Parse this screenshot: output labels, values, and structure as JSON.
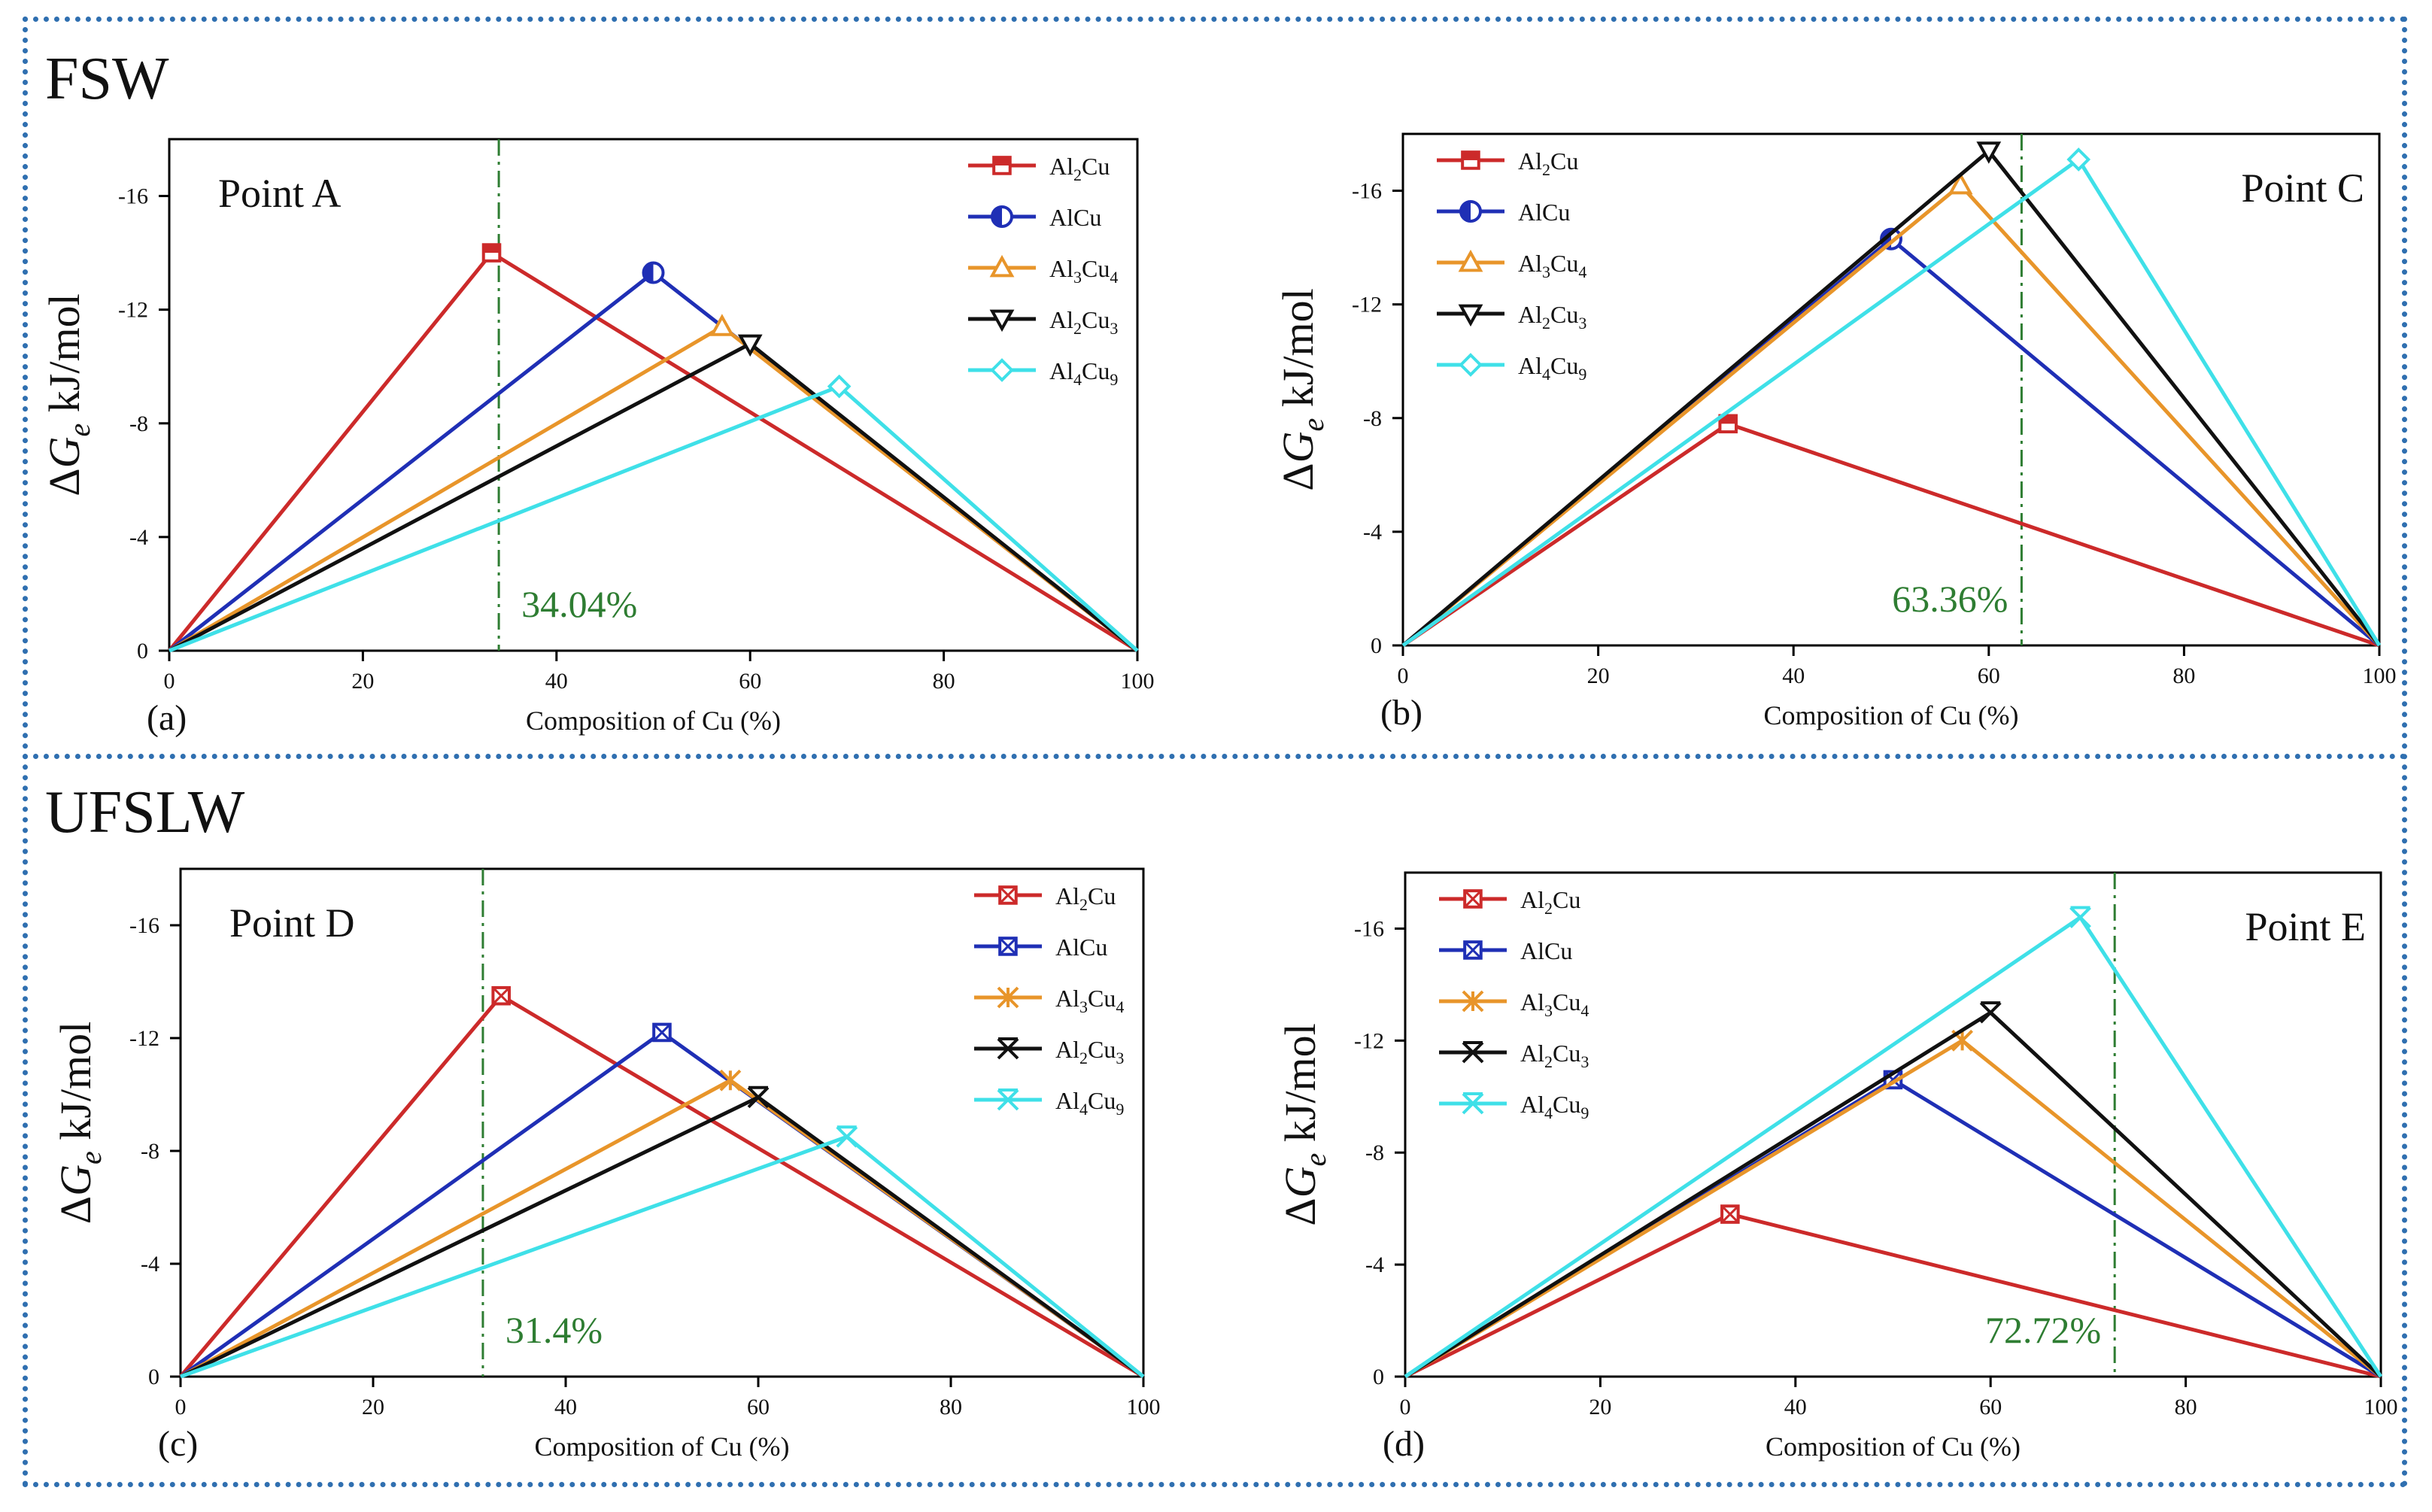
{
  "sections": [
    {
      "title": "FSW"
    },
    {
      "title": "UFSLW"
    }
  ],
  "colors": {
    "Al2Cu": "#cc2a2a",
    "AlCu": "#1f2fb5",
    "Al3Cu4": "#e8952a",
    "Al2Cu3": "#111111",
    "Al4Cu9": "#3fe0e8",
    "marker_line": "#2e7d32",
    "frame": "#2f6fb0"
  },
  "chart_data": [
    {
      "type": "line",
      "panel_label": "(a)",
      "point_label": "Point A",
      "annotation": "34.04%",
      "vline_x": 34.04,
      "xlabel": "Composition of Cu (%)",
      "ylabel_parts": [
        "ΔG",
        "e",
        "kJ/mol"
      ],
      "xlim": [
        0,
        100
      ],
      "ylim": [
        0,
        -18
      ],
      "xticks": [
        0,
        20,
        40,
        60,
        80,
        100
      ],
      "yticks": [
        0,
        -4,
        -8,
        -12,
        -16
      ],
      "legend_position": "top-right",
      "series": [
        {
          "name": "Al2Cu",
          "label_parts": [
            "Al",
            "2",
            "Cu",
            ""
          ],
          "marker": "square-half",
          "x": [
            0,
            33.3,
            100
          ],
          "y": [
            0,
            -14.0,
            0
          ]
        },
        {
          "name": "AlCu",
          "label_parts": [
            "AlCu",
            "",
            "",
            ""
          ],
          "marker": "circle-half",
          "x": [
            0,
            50,
            100
          ],
          "y": [
            0,
            -13.3,
            0
          ]
        },
        {
          "name": "Al3Cu4",
          "label_parts": [
            "Al",
            "3",
            "Cu",
            "4"
          ],
          "marker": "tri-up",
          "x": [
            0,
            57.1,
            100
          ],
          "y": [
            0,
            -11.4,
            0
          ]
        },
        {
          "name": "Al2Cu3",
          "label_parts": [
            "Al",
            "2",
            "Cu",
            "3"
          ],
          "marker": "tri-down",
          "x": [
            0,
            60,
            100
          ],
          "y": [
            0,
            -10.8,
            0
          ]
        },
        {
          "name": "Al4Cu9",
          "label_parts": [
            "Al",
            "4",
            "Cu",
            "9"
          ],
          "marker": "diamond",
          "x": [
            0,
            69.2,
            100
          ],
          "y": [
            0,
            -9.3,
            0
          ]
        }
      ]
    },
    {
      "type": "line",
      "panel_label": "(b)",
      "point_label": "Point C",
      "annotation": "63.36%",
      "vline_x": 63.36,
      "xlabel": "Composition of Cu (%)",
      "ylabel_parts": [
        "ΔG",
        "e",
        "kJ/mol"
      ],
      "xlim": [
        0,
        100
      ],
      "ylim": [
        0,
        -18
      ],
      "xticks": [
        0,
        20,
        40,
        60,
        80,
        100
      ],
      "yticks": [
        0,
        -4,
        -8,
        -12,
        -16
      ],
      "legend_position": "top-left",
      "series": [
        {
          "name": "Al2Cu",
          "label_parts": [
            "Al",
            "2",
            "Cu",
            ""
          ],
          "marker": "square-half",
          "x": [
            0,
            33.3,
            100
          ],
          "y": [
            0,
            -7.8,
            0
          ]
        },
        {
          "name": "AlCu",
          "label_parts": [
            "AlCu",
            "",
            "",
            ""
          ],
          "marker": "circle-half",
          "x": [
            0,
            50,
            100
          ],
          "y": [
            0,
            -14.3,
            0
          ]
        },
        {
          "name": "Al3Cu4",
          "label_parts": [
            "Al",
            "3",
            "Cu",
            "4"
          ],
          "marker": "tri-up",
          "x": [
            0,
            57.1,
            100
          ],
          "y": [
            0,
            -16.2,
            0
          ]
        },
        {
          "name": "Al2Cu3",
          "label_parts": [
            "Al",
            "2",
            "Cu",
            "3"
          ],
          "marker": "tri-down",
          "x": [
            0,
            60,
            100
          ],
          "y": [
            0,
            -17.4,
            0
          ]
        },
        {
          "name": "Al4Cu9",
          "label_parts": [
            "Al",
            "4",
            "Cu",
            "9"
          ],
          "marker": "diamond",
          "x": [
            0,
            69.2,
            100
          ],
          "y": [
            0,
            -17.1,
            0
          ]
        }
      ]
    },
    {
      "type": "line",
      "panel_label": "(c)",
      "point_label": "Point D",
      "annotation": "31.4%",
      "vline_x": 31.4,
      "xlabel": "Composition of Cu (%)",
      "ylabel_parts": [
        "ΔG",
        "e",
        "kJ/mol"
      ],
      "xlim": [
        0,
        100
      ],
      "ylim": [
        0,
        -18
      ],
      "xticks": [
        0,
        20,
        40,
        60,
        80,
        100
      ],
      "yticks": [
        0,
        -4,
        -8,
        -12,
        -16
      ],
      "legend_position": "top-right",
      "series": [
        {
          "name": "Al2Cu",
          "label_parts": [
            "Al",
            "2",
            "Cu",
            ""
          ],
          "marker": "square-x",
          "x": [
            0,
            33.3,
            100
          ],
          "y": [
            0,
            -13.5,
            0
          ]
        },
        {
          "name": "AlCu",
          "label_parts": [
            "AlCu",
            "",
            "",
            ""
          ],
          "marker": "square-x",
          "x": [
            0,
            50,
            100
          ],
          "y": [
            0,
            -12.2,
            0
          ]
        },
        {
          "name": "Al3Cu4",
          "label_parts": [
            "Al",
            "3",
            "Cu",
            "4"
          ],
          "marker": "asterisk",
          "x": [
            0,
            57.1,
            100
          ],
          "y": [
            0,
            -10.5,
            0
          ]
        },
        {
          "name": "Al2Cu3",
          "label_parts": [
            "Al",
            "2",
            "Cu",
            "3"
          ],
          "marker": "x-bar",
          "x": [
            0,
            60,
            100
          ],
          "y": [
            0,
            -9.9,
            0
          ]
        },
        {
          "name": "Al4Cu9",
          "label_parts": [
            "Al",
            "4",
            "Cu",
            "9"
          ],
          "marker": "x-bar",
          "x": [
            0,
            69.2,
            100
          ],
          "y": [
            0,
            -8.5,
            0
          ]
        }
      ]
    },
    {
      "type": "line",
      "panel_label": "(d)",
      "point_label": "Point E",
      "annotation": "72.72%",
      "vline_x": 72.72,
      "xlabel": "Composition of Cu (%)",
      "ylabel_parts": [
        "ΔG",
        "e",
        "kJ/mol"
      ],
      "xlim": [
        0,
        100
      ],
      "ylim": [
        0,
        -18
      ],
      "xticks": [
        0,
        20,
        40,
        60,
        80,
        100
      ],
      "yticks": [
        0,
        -4,
        -8,
        -12,
        -16
      ],
      "legend_position": "top-left",
      "series": [
        {
          "name": "Al2Cu",
          "label_parts": [
            "Al",
            "2",
            "Cu",
            ""
          ],
          "marker": "square-x",
          "x": [
            0,
            33.3,
            100
          ],
          "y": [
            0,
            -5.8,
            0
          ]
        },
        {
          "name": "AlCu",
          "label_parts": [
            "AlCu",
            "",
            "",
            ""
          ],
          "marker": "square-x",
          "x": [
            0,
            50,
            100
          ],
          "y": [
            0,
            -10.6,
            0
          ]
        },
        {
          "name": "Al3Cu4",
          "label_parts": [
            "Al",
            "3",
            "Cu",
            "4"
          ],
          "marker": "asterisk",
          "x": [
            0,
            57.1,
            100
          ],
          "y": [
            0,
            -12.0,
            0
          ]
        },
        {
          "name": "Al2Cu3",
          "label_parts": [
            "Al",
            "2",
            "Cu",
            "3"
          ],
          "marker": "x-bar",
          "x": [
            0,
            60,
            100
          ],
          "y": [
            0,
            -13.0,
            0
          ]
        },
        {
          "name": "Al4Cu9",
          "label_parts": [
            "Al",
            "4",
            "Cu",
            "9"
          ],
          "marker": "x-bar",
          "x": [
            0,
            69.2,
            100
          ],
          "y": [
            0,
            -16.4,
            0
          ]
        }
      ]
    }
  ]
}
